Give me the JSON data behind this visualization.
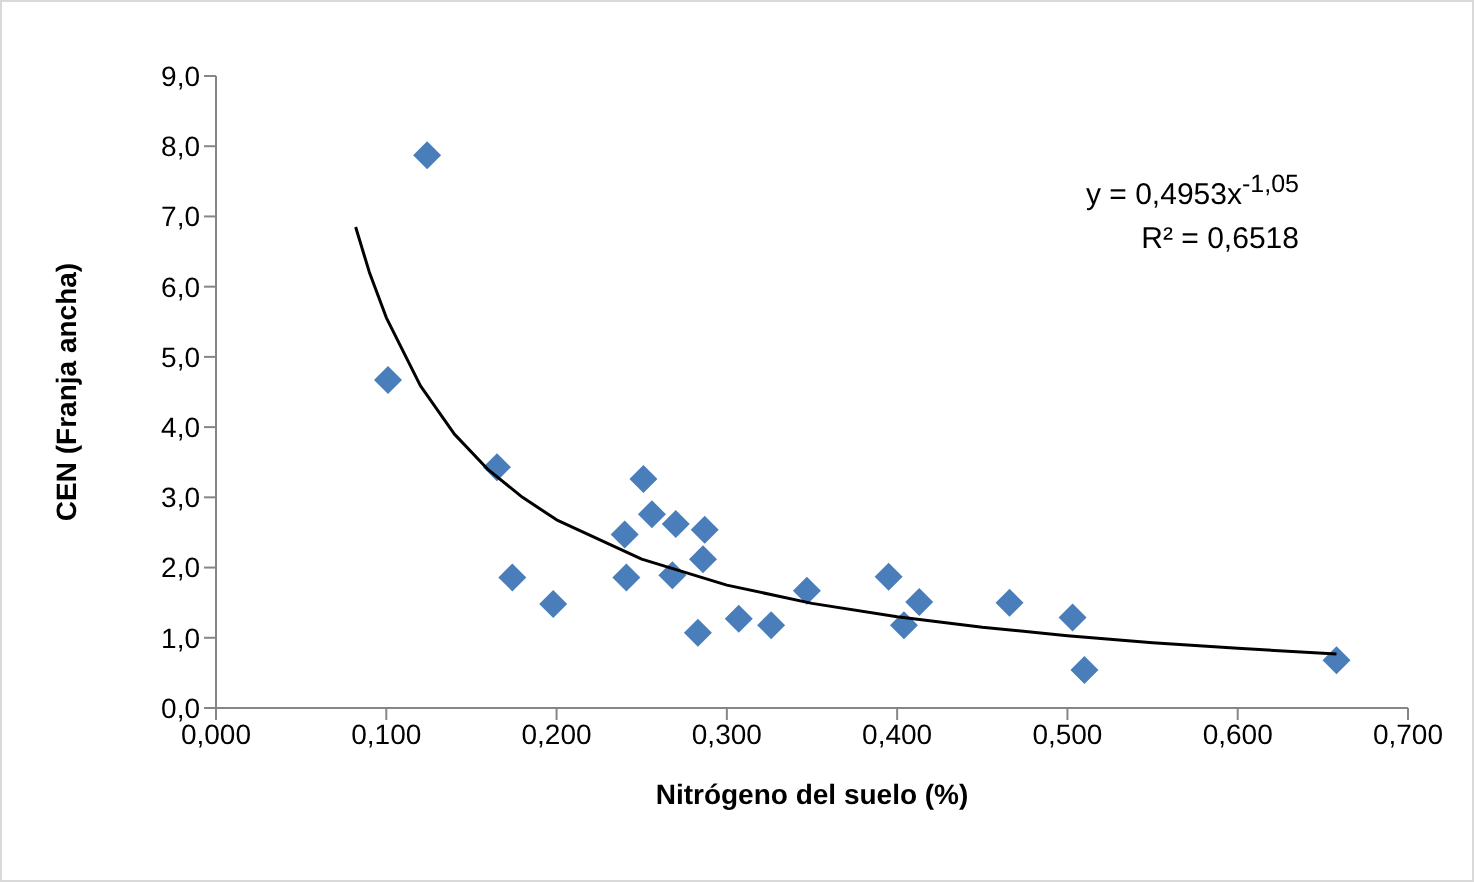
{
  "chart_data": {
    "type": "scatter",
    "xlabel": "Nitrógeno del suelo (%)",
    "ylabel": "CEN (Franja ancha)",
    "annotations": [
      "y = 0,4953x$^{-1,05}$",
      "R² = 0,6518"
    ],
    "marker": "diamond",
    "grid": false,
    "legend": false,
    "xlim": [
      0,
      0.7
    ],
    "xticks": [
      {
        "value": 0,
        "label": "0,000"
      },
      {
        "value": 0.1,
        "label": "0,100"
      },
      {
        "value": 0.2,
        "label": "0,200"
      },
      {
        "value": 0.3,
        "label": "0,300"
      },
      {
        "value": 0.4,
        "label": "0,400"
      },
      {
        "value": 0.5,
        "label": "0,500"
      },
      {
        "value": 0.6,
        "label": "0,600"
      },
      {
        "value": 0.7,
        "label": "0,700"
      }
    ],
    "ylim": [
      0,
      9
    ],
    "yticks": [
      {
        "value": 0,
        "label": "0,0"
      },
      {
        "value": 1,
        "label": "1,0"
      },
      {
        "value": 2,
        "label": "2,0"
      },
      {
        "value": 3,
        "label": "3,0"
      },
      {
        "value": 4,
        "label": "4,0"
      },
      {
        "value": 5,
        "label": "5,0"
      },
      {
        "value": 6,
        "label": "6,0"
      },
      {
        "value": 7,
        "label": "7,0"
      },
      {
        "value": 8,
        "label": "8,0"
      },
      {
        "value": 9,
        "label": "9,0"
      }
    ],
    "series": [
      {
        "color": "#4a7ebb",
        "x": [
          0.124,
          0.101,
          0.165,
          0.174,
          0.198,
          0.241,
          0.24,
          0.251,
          0.256,
          0.27,
          0.287,
          0.286,
          0.268,
          0.283,
          0.307,
          0.326,
          0.347,
          0.395,
          0.413,
          0.404,
          0.466,
          0.503,
          0.51,
          0.658
        ],
        "values": [
          7.87,
          4.67,
          3.43,
          1.86,
          1.48,
          1.86,
          2.47,
          3.26,
          2.76,
          2.62,
          2.54,
          2.12,
          1.89,
          1.07,
          1.27,
          1.18,
          1.67,
          1.87,
          1.51,
          1.18,
          1.5,
          1.29,
          0.54,
          0.68
        ]
      },
      {
        "type": "line",
        "color": "#000000",
        "marker": "none",
        "x": [
          0.082,
          0.09,
          0.1,
          0.12,
          0.14,
          0.16,
          0.18,
          0.2,
          0.25,
          0.3,
          0.35,
          0.4,
          0.45,
          0.5,
          0.55,
          0.6,
          0.658
        ],
        "values": [
          6.85,
          6.21,
          5.56,
          4.59,
          3.9,
          3.39,
          3.0,
          2.68,
          2.12,
          1.75,
          1.49,
          1.3,
          1.15,
          1.03,
          0.93,
          0.85,
          0.77
        ]
      }
    ]
  }
}
